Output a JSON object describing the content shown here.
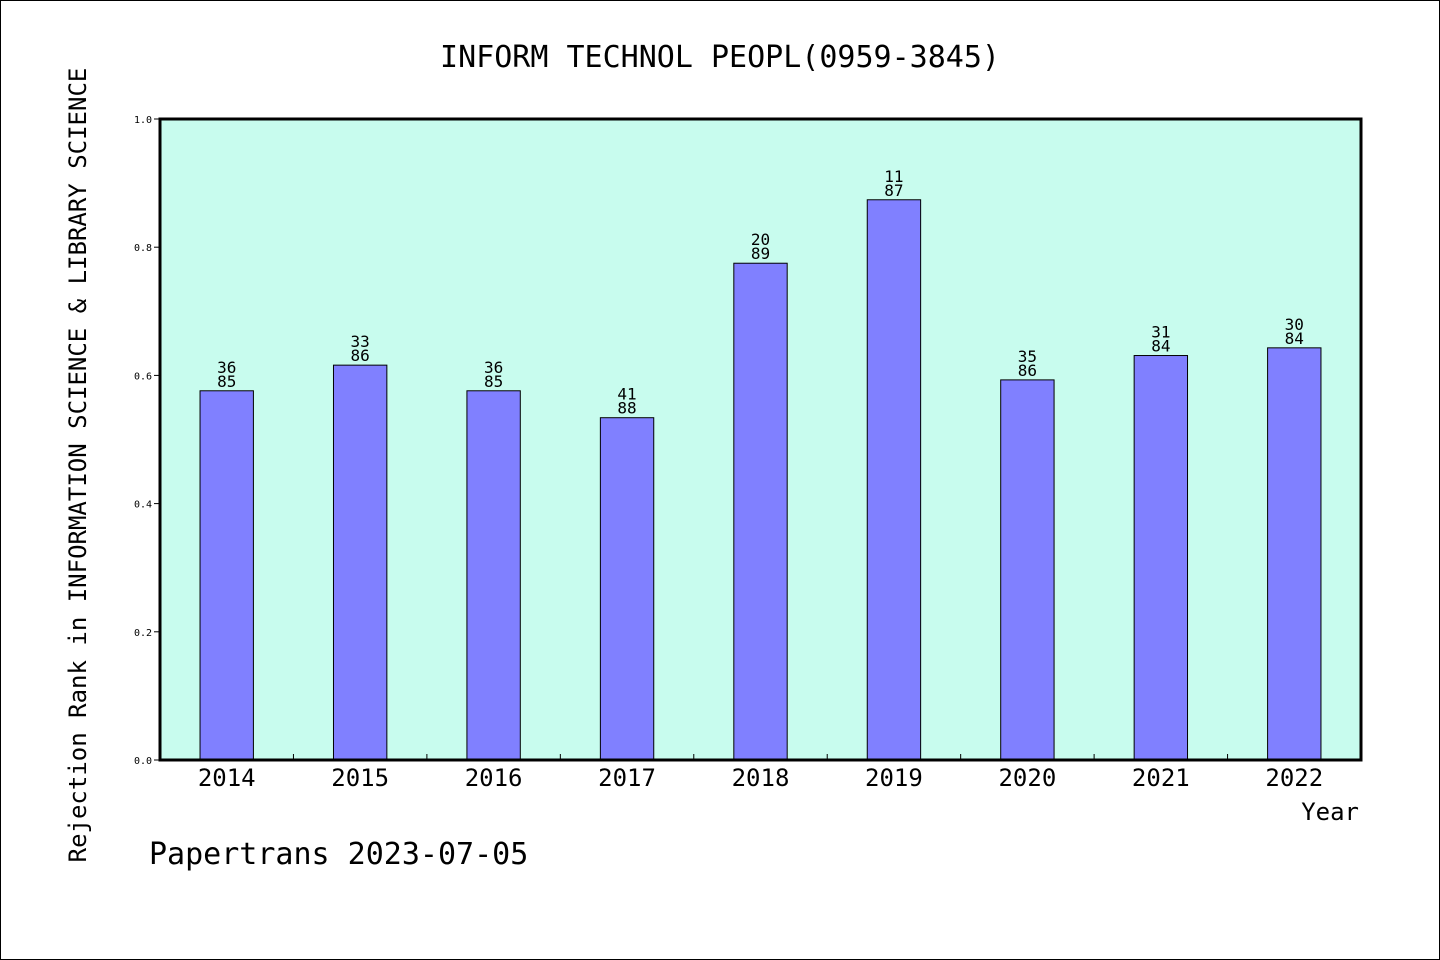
{
  "chart_data": {
    "type": "bar",
    "title": "INFORM TECHNOL PEOPL(0959-3845)",
    "xlabel": "Year",
    "ylabel": "Rejection Rank in INFORMATION SCIENCE & LIBRARY SCIENCE",
    "categories": [
      "2014",
      "2015",
      "2016",
      "2017",
      "2018",
      "2019",
      "2020",
      "2021",
      "2022"
    ],
    "values": [
      0.576,
      0.616,
      0.576,
      0.534,
      0.775,
      0.874,
      0.593,
      0.631,
      0.643
    ],
    "bar_labels": [
      [
        "36",
        "85"
      ],
      [
        "33",
        "86"
      ],
      [
        "36",
        "85"
      ],
      [
        "41",
        "88"
      ],
      [
        "20",
        "89"
      ],
      [
        "11",
        "87"
      ],
      [
        "35",
        "86"
      ],
      [
        "31",
        "84"
      ],
      [
        "30",
        "84"
      ]
    ],
    "yticks": [
      "0.0",
      "0.2",
      "0.4",
      "0.6",
      "0.8",
      "1.0"
    ],
    "ylim": [
      0,
      1.0
    ],
    "grid": false,
    "colors": {
      "plot_background": "#c8fcee",
      "bar_fill": "#8080ff",
      "bar_stroke": "#000000"
    }
  },
  "footer": "Papertrans 2023-07-05"
}
